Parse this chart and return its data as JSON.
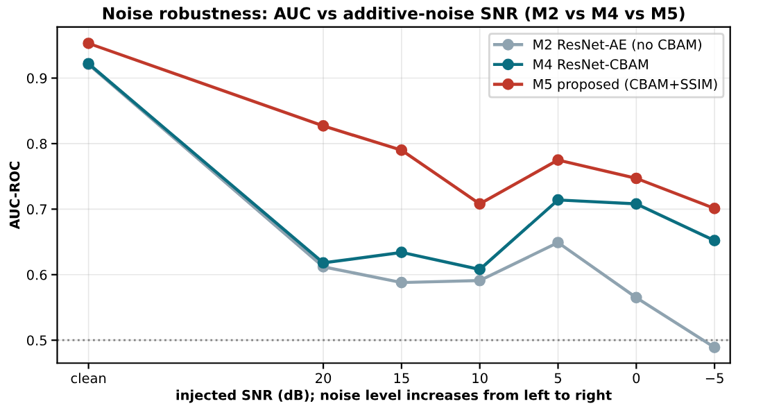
{
  "chart_data": {
    "type": "line",
    "title": "Noise robustness: AUC vs additive-noise SNR (M2 vs M4 vs M5)",
    "xlabel": "injected SNR (dB); noise level increases from left to right",
    "ylabel": "AUC-ROC",
    "x": [
      35,
      20,
      15,
      10,
      5,
      0,
      -5
    ],
    "series": [
      {
        "name": "M2 ResNet-AE (no CBAM)",
        "color": "#8fa3b0",
        "values": [
          0.921,
          0.612,
          0.588,
          0.591,
          0.649,
          0.565,
          0.489
        ]
      },
      {
        "name": "M4 ResNet-CBAM",
        "color": "#0b6e80",
        "values": [
          0.922,
          0.618,
          0.634,
          0.608,
          0.714,
          0.708,
          0.652
        ]
      },
      {
        "name": "M5 proposed (CBAM+SSIM)",
        "color": "#c0392b",
        "values": [
          0.953,
          0.827,
          0.79,
          0.708,
          0.775,
          0.747,
          0.701
        ]
      }
    ],
    "xlim": [
      37,
      -6
    ],
    "xticks": [
      {
        "value": 35,
        "label": "clean"
      },
      20,
      15,
      10,
      5,
      0,
      {
        "value": -5,
        "label": "−5"
      }
    ],
    "ylim": [
      0.465,
      0.978
    ],
    "yticks": [
      0.5,
      0.6,
      0.7,
      0.8,
      0.9
    ],
    "ref_lines": [
      {
        "axis": "y",
        "value": 0.5,
        "color": "#808080",
        "line_style": "dotted"
      }
    ],
    "grid": true,
    "legend": "top right",
    "marker": "circle",
    "line_style": "solid"
  }
}
